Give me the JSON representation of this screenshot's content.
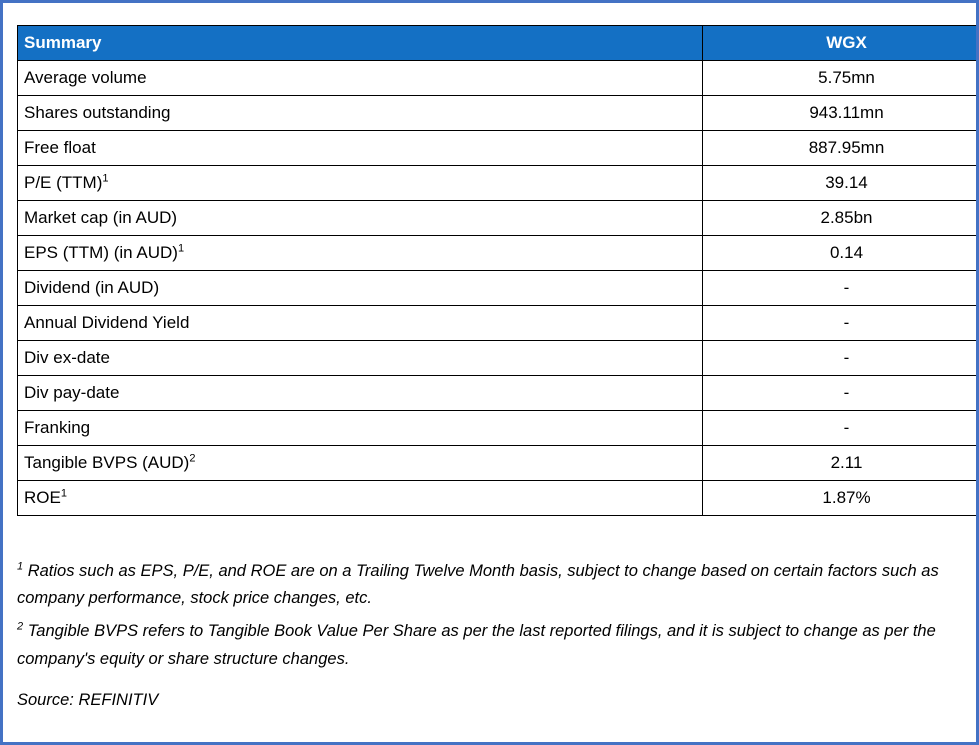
{
  "colors": {
    "frame_border": "#4472C4",
    "header_bg": "#1470C4",
    "header_text": "#FFFFFF",
    "table_border": "#000000"
  },
  "table": {
    "header": {
      "label": "Summary",
      "value": "WGX"
    },
    "rows": [
      {
        "label": "Average volume",
        "sup": "",
        "value": "5.75mn"
      },
      {
        "label": "Shares outstanding",
        "sup": "",
        "value": "943.11mn"
      },
      {
        "label": "Free float",
        "sup": "",
        "value": "887.95mn"
      },
      {
        "label": "P/E (TTM)",
        "sup": "1",
        "value": "39.14"
      },
      {
        "label": "Market cap (in AUD)",
        "sup": "",
        "value": "2.85bn"
      },
      {
        "label": "EPS (TTM) (in AUD)",
        "sup": "1",
        "value": "0.14"
      },
      {
        "label": "Dividend (in AUD)",
        "sup": "",
        "value": "-"
      },
      {
        "label": "Annual Dividend Yield",
        "sup": "",
        "value": "-"
      },
      {
        "label": "Div ex-date",
        "sup": "",
        "value": "-"
      },
      {
        "label": "Div pay-date",
        "sup": "",
        "value": "-"
      },
      {
        "label": "Franking",
        "sup": "",
        "value": "-"
      },
      {
        "label": "Tangible BVPS (AUD)",
        "sup": "2",
        "value": "2.11"
      },
      {
        "label": "ROE",
        "sup": "1",
        "value": "1.87%"
      }
    ]
  },
  "footnotes": [
    {
      "sup": "1",
      "text": " Ratios such as EPS, P/E,  and ROE are on a Trailing Twelve Month basis, subject to change based on certain factors such as company performance, stock price changes, etc."
    },
    {
      "sup": "2",
      "text": " Tangible BVPS refers to Tangible Book Value Per Share as per the last reported filings, and it is subject to change as per the company's equity or share structure changes."
    }
  ],
  "source": "Source: REFINITIV"
}
